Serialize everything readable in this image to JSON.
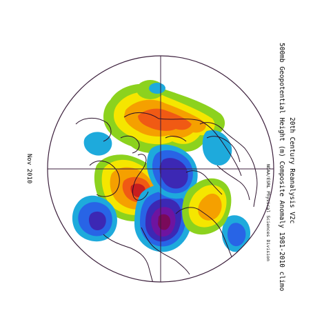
{
  "title_line_1": "20th Century Reanalysis V2c",
  "title_line_2": "500mb Geopotential Height (m) Composite Anomaly 1981-2010 climo",
  "credit": "NOAA/ESRL Physical Sciences Division",
  "date_label": "Nov 2010",
  "projection": "north-polar-stereographic",
  "colors": {
    "outline": "#3b1e3b",
    "coast": "#2a102a",
    "strong_positive": "#c81e1e",
    "positive_high": "#f05a14",
    "positive": "#f5a000",
    "weak_positive": "#f5e600",
    "slight_positive": "#8cd21e",
    "slight_negative": "#1eaadc",
    "weak_negative": "#2864e6",
    "negative": "#3c28b4",
    "strong_negative": "#6e14a0",
    "very_strong_negative": "#7a0a5a"
  }
}
